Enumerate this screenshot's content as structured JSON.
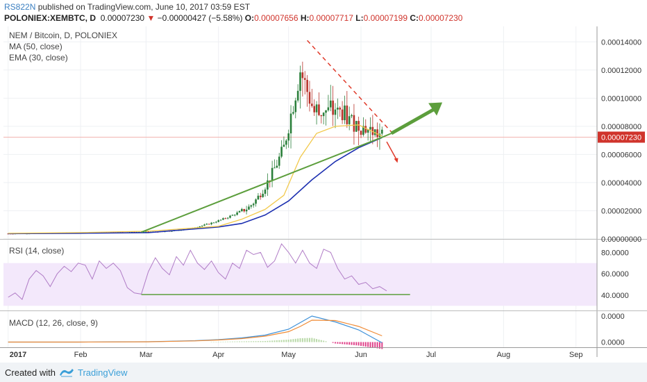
{
  "header": {
    "author": "RS822N",
    "published_text": "published on TradingView.com, June 10, 2017 03:59 EST",
    "symbol": "POLONIEX:XEMBTC, D",
    "last_price": "0.00007230",
    "change": "−0.00000427 (−5.58%)",
    "open_label": "O:",
    "open": "0.00007656",
    "high_label": "H:",
    "high": "0.00007717",
    "low_label": "L:",
    "low": "0.00007199",
    "close_label": "C:",
    "close": "0.00007230"
  },
  "price_pane": {
    "title": "NEM / Bitcoin, D, POLONIEX",
    "ma_label": "MA (50, close)",
    "ema_label": "EMA (30, close)",
    "current_price_tag": "0.00007230"
  },
  "rsi_pane": {
    "title": "RSI (14, close)"
  },
  "macd_pane": {
    "title": "MACD (12, 26, close, 9)"
  },
  "footer": {
    "created_with": "Created with",
    "brand": "TradingView"
  },
  "colors": {
    "up_candle": "#2a7f3a",
    "down_candle": "#b8322a",
    "ma": "#1c2fb0",
    "ema": "#f2c94c",
    "trendline": "#5c9e3c",
    "resistance": "#e03a2a",
    "rsi_line": "#b07cc6",
    "rsi_band": "#f3e8fb",
    "macd_line": "#3b8fd8",
    "signal_line": "#f08b35",
    "histogram": "#e0428a",
    "price_tag": "#d0342c"
  },
  "chart_data": [
    {
      "type": "line",
      "pane": "price",
      "ylim": [
        0,
        0.00015
      ],
      "y_ticks": [
        "0.00014000",
        "0.00012000",
        "0.00010000",
        "0.00008000",
        "0.00006000",
        "0.00004000",
        "0.00002000",
        "0.00000000"
      ],
      "y_tick_values": [
        0.00014,
        0.00012,
        0.0001,
        8e-05,
        6e-05,
        4e-05,
        2e-05,
        0
      ],
      "x_ticks": [
        "2017",
        "Feb",
        "Mar",
        "Apr",
        "May",
        "Jun",
        "Jul",
        "Aug",
        "Sep"
      ],
      "x_tick_days": [
        0,
        31,
        59,
        90,
        120,
        151,
        181,
        212,
        243
      ],
      "xlim": [
        -2,
        252
      ],
      "candles_day_range": [
        0,
        160
      ],
      "last_close": 7.23e-05,
      "series": [
        {
          "name": "MA (50, close)",
          "x": [
            0,
            30,
            60,
            90,
            100,
            110,
            120,
            130,
            140,
            150,
            160
          ],
          "values": [
            3.8e-06,
            4e-06,
            4.5e-06,
            8.5e-06,
            1.1e-05,
            1.7e-05,
            2.7e-05,
            4.2e-05,
            5.5e-05,
            6.48e-05,
            7.2e-05
          ]
        },
        {
          "name": "EMA (30, close)",
          "x": [
            0,
            30,
            60,
            90,
            100,
            110,
            118,
            125,
            132,
            140,
            150,
            160
          ],
          "values": [
            4e-06,
            4.5e-06,
            5.5e-06,
            9e-06,
            1.4e-05,
            2.1e-05,
            3.1e-05,
            5.8e-05,
            7.5e-05,
            8e-05,
            8.1e-05,
            7.3e-05
          ]
        },
        {
          "name": "Trendline",
          "x": [
            57,
            160,
            164
          ],
          "values": [
            4.8e-06,
            7.22e-05,
            7.5e-05
          ]
        },
        {
          "name": "Resistance",
          "x": [
            128,
            164
          ],
          "values": [
            0.000141,
            7.6e-05
          ]
        }
      ]
    },
    {
      "type": "line",
      "pane": "rsi",
      "ylim": [
        25,
        90
      ],
      "y_ticks": [
        "80.0000",
        "60.0000",
        "40.0000"
      ],
      "y_tick_values": [
        80,
        60,
        40
      ],
      "band": [
        30,
        70
      ],
      "support_level": 40.5,
      "support_x": [
        57,
        172
      ],
      "x": [
        0,
        3,
        6,
        9,
        12,
        15,
        18,
        21,
        24,
        27,
        30,
        33,
        36,
        39,
        42,
        45,
        48,
        51,
        54,
        57,
        60,
        63,
        66,
        69,
        72,
        75,
        78,
        81,
        84,
        87,
        90,
        93,
        96,
        99,
        102,
        105,
        108,
        111,
        114,
        117,
        120,
        123,
        126,
        129,
        132,
        135,
        138,
        141,
        144,
        147,
        150,
        153,
        156,
        159,
        162
      ],
      "values": [
        38,
        42,
        36,
        55,
        63,
        58,
        48,
        60,
        67,
        62,
        70,
        68,
        55,
        72,
        65,
        70,
        63,
        47,
        42,
        41,
        62,
        75,
        65,
        59,
        76,
        68,
        82,
        70,
        64,
        72,
        61,
        55,
        70,
        65,
        82,
        78,
        80,
        66,
        72,
        88,
        80,
        70,
        82,
        70,
        65,
        83,
        80,
        65,
        55,
        58,
        50,
        52,
        46,
        48,
        44
      ]
    },
    {
      "type": "line",
      "pane": "macd",
      "ylim": [
        -1.5e-06,
        8.5e-06
      ],
      "y_ticks": [
        "0.0000",
        "0.0000"
      ],
      "y_tick_values": [
        7.5e-06,
        0
      ],
      "series": [
        {
          "name": "MACD",
          "x": [
            0,
            30,
            60,
            80,
            90,
            100,
            110,
            120,
            125,
            130,
            140,
            150,
            160
          ],
          "values": [
            0,
            0,
            1e-07,
            4e-07,
            7e-07,
            1.2e-06,
            2e-06,
            3.7e-06,
            5.6e-06,
            7.5e-06,
            5.8e-06,
            3.5e-06,
            -2e-07
          ]
        },
        {
          "name": "Signal",
          "x": [
            0,
            30,
            60,
            80,
            90,
            100,
            110,
            120,
            125,
            130,
            140,
            150,
            160
          ],
          "values": [
            0,
            0,
            8e-08,
            3.5e-07,
            6e-07,
            1e-06,
            1.7e-06,
            3e-06,
            4.5e-06,
            6.3e-06,
            6.2e-06,
            4.5e-06,
            1.8e-06
          ]
        }
      ]
    }
  ]
}
